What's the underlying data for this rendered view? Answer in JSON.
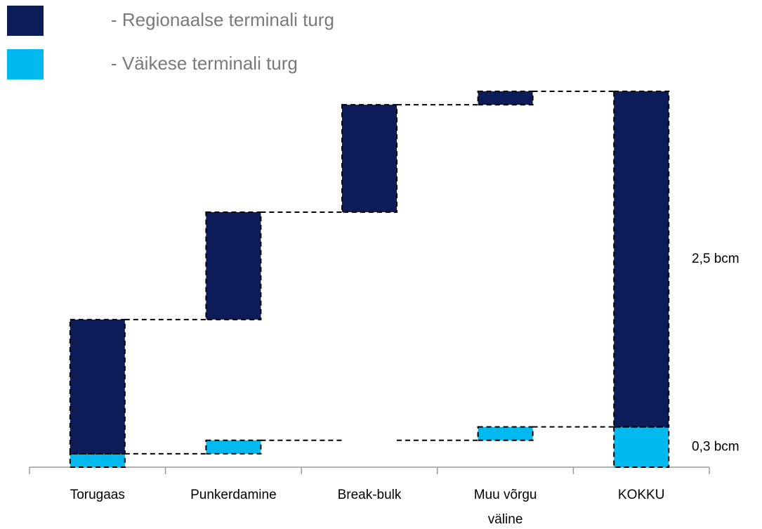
{
  "chart_data": {
    "type": "waterfall",
    "categories": [
      "Torugaas",
      "Punkerdamine",
      "Break-bulk",
      "Muu võrgu väline",
      "KOKKU"
    ],
    "series": [
      {
        "name": "- Regionaalse terminali turg",
        "color": "#0c1c58",
        "values": [
          1.0,
          0.8,
          0.8,
          0.1,
          2.5
        ]
      },
      {
        "name": "- Väikese terminali turg",
        "color": "#00b9ee",
        "values": [
          0.1,
          0.1,
          0,
          0.1,
          0.3
        ]
      }
    ],
    "annotations": [
      "2,5 bcm",
      "0,3 bcm"
    ],
    "ylim": [
      0,
      2.8
    ]
  }
}
